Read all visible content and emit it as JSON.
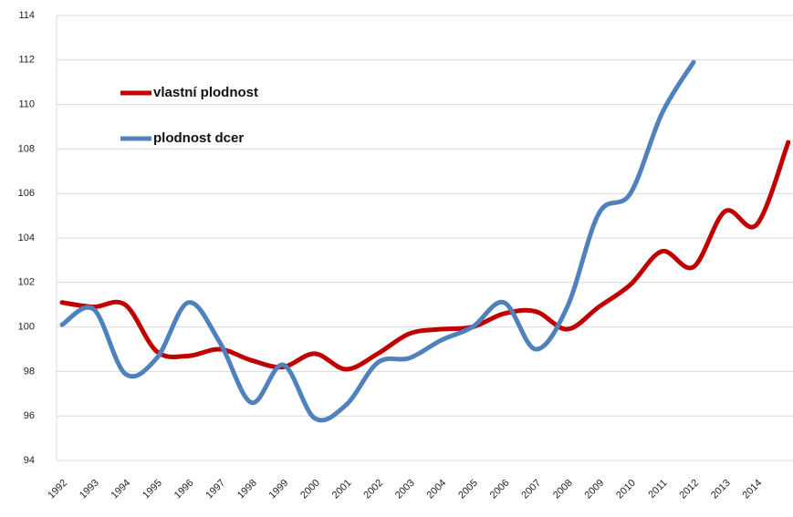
{
  "chart_data": {
    "type": "line",
    "categories": [
      "1992",
      "1993",
      "1994",
      "1995",
      "1996",
      "1997",
      "1998",
      "1999",
      "2000",
      "2001",
      "2002",
      "2003",
      "2004",
      "2005",
      "2006",
      "2007",
      "2008",
      "2009",
      "2010",
      "2011",
      "2012",
      "2013",
      "2014",
      null
    ],
    "series": [
      {
        "name": "vlastní plodnost",
        "color": "#c00000",
        "values": [
          101.1,
          100.9,
          101.0,
          98.9,
          98.7,
          99.0,
          98.5,
          98.2,
          98.8,
          98.1,
          98.8,
          99.7,
          99.9,
          100.0,
          100.6,
          100.7,
          99.9,
          100.9,
          101.9,
          103.4,
          102.7,
          105.2,
          104.6,
          108.3
        ]
      },
      {
        "name": "plodnost dcer",
        "color": "#4f81bd",
        "values": [
          100.1,
          100.8,
          97.9,
          98.6,
          101.1,
          99.3,
          96.6,
          98.3,
          95.9,
          96.5,
          98.4,
          98.6,
          99.4,
          100.0,
          101.1,
          99.0,
          100.9,
          105.1,
          106.0,
          109.6,
          111.9,
          null,
          null,
          null
        ]
      }
    ],
    "ylim": [
      94,
      114
    ],
    "yticks": [
      94,
      96,
      98,
      100,
      102,
      104,
      106,
      108,
      110,
      112,
      114
    ],
    "grid": true,
    "legend": "top-left"
  }
}
